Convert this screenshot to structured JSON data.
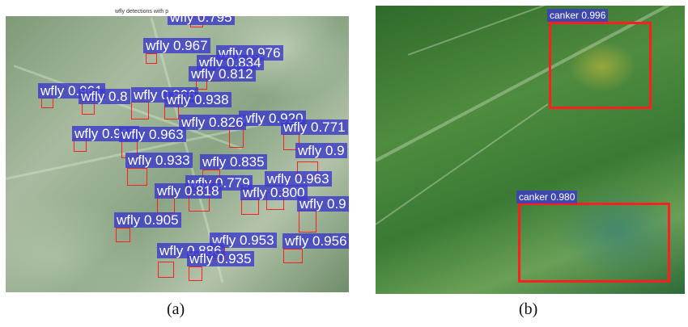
{
  "panel_a": {
    "title": "wfly detections with p",
    "caption": "(a)",
    "detections": [
      {
        "label": "wfly 0.795"
      },
      {
        "label": "wfly 0.967"
      },
      {
        "label": "wfly 0.976"
      },
      {
        "label": "wfly 0.834"
      },
      {
        "label": "wfly 0.812"
      },
      {
        "label": "wfly 0.961"
      },
      {
        "label": "wfly 0.8"
      },
      {
        "label": "wfly 0.866"
      },
      {
        "label": "wfly 0.938"
      },
      {
        "label": "wfly 0.920"
      },
      {
        "label": "wfly 0.826"
      },
      {
        "label": "wfly 0.771"
      },
      {
        "label": "wfly 0.917"
      },
      {
        "label": "wfly 0.963"
      },
      {
        "label": "wfly 0.9"
      },
      {
        "label": "wfly 0.933"
      },
      {
        "label": "wfly 0.835"
      },
      {
        "label": "wfly 0.963"
      },
      {
        "label": "wfly 0.779"
      },
      {
        "label": "wfly 0.818"
      },
      {
        "label": "wfly 0.800"
      },
      {
        "label": "wfly 0.9"
      },
      {
        "label": "wfly 0.905"
      },
      {
        "label": "wfly 0.953"
      },
      {
        "label": "wfly 0.956"
      },
      {
        "label": "wfly 0.886"
      },
      {
        "label": "wfly 0.935"
      }
    ]
  },
  "panel_b": {
    "caption": "(b)",
    "detections": [
      {
        "label": "canker 0.996"
      },
      {
        "label": "canker 0.980"
      }
    ]
  },
  "colors": {
    "box": "#ff1e1e",
    "label_bg": "#3c3cc8"
  }
}
